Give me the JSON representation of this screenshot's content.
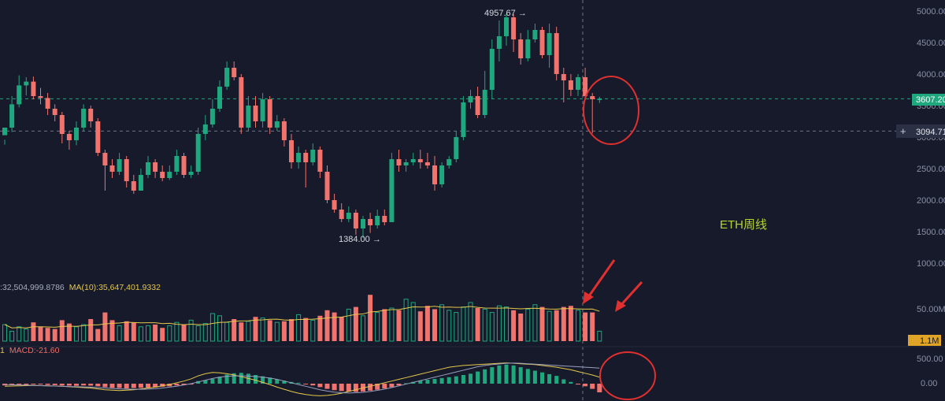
{
  "chart_data": {
    "type": "candlestick",
    "annotation": "ETH周线",
    "y_axis": {
      "ticks": [
        "5000.00",
        "4500.00",
        "4000.00",
        "3500.00",
        "3000.00",
        "2500.00",
        "2000.00",
        "1500.00",
        "1000.00"
      ],
      "ylim": [
        1000,
        5000
      ]
    },
    "price_labels": {
      "high": "4957.67",
      "low": "1384.00",
      "current": "3607.20",
      "crosshair": "3094.71"
    },
    "volume": {
      "legend_left": ":32,504,999.8786",
      "ma10_legend": "MA(10):35,647,401.9332",
      "tick": "50.00M",
      "current_badge": "1.1M"
    },
    "macd": {
      "legend_prefix": "1",
      "legend": "MACD:-21.60",
      "ticks": [
        "500.00",
        "0.00"
      ]
    },
    "candles": [
      [
        3030,
        3150,
        2960,
        2880
      ],
      [
        3150,
        3520,
        3650,
        3080
      ],
      [
        3520,
        3820,
        3980,
        3470
      ],
      [
        3820,
        3880,
        3950,
        3660
      ],
      [
        3880,
        3650,
        3960,
        3600
      ],
      [
        3650,
        3620,
        3780,
        3520
      ],
      [
        3620,
        3450,
        3700,
        3350
      ],
      [
        3450,
        3350,
        3520,
        3250
      ],
      [
        3350,
        3050,
        3400,
        2900
      ],
      [
        3050,
        2950,
        3100,
        2800
      ],
      [
        2950,
        3150,
        3250,
        2870
      ],
      [
        3150,
        3450,
        3520,
        3100
      ],
      [
        3450,
        3250,
        3500,
        3150
      ],
      [
        3250,
        2750,
        3300,
        2700
      ],
      [
        2750,
        2550,
        2800,
        2150
      ],
      [
        2550,
        2450,
        2650,
        2350
      ],
      [
        2450,
        2650,
        2750,
        2400
      ],
      [
        2650,
        2300,
        2700,
        2200
      ],
      [
        2300,
        2150,
        2400,
        2100
      ],
      [
        2150,
        2400,
        2500,
        2150
      ],
      [
        2400,
        2600,
        2700,
        2350
      ],
      [
        2600,
        2450,
        2650,
        2350
      ],
      [
        2450,
        2350,
        2550,
        2300
      ],
      [
        2350,
        2450,
        2550,
        2320
      ],
      [
        2450,
        2700,
        2800,
        2400
      ],
      [
        2700,
        2400,
        2750,
        2350
      ],
      [
        2400,
        2450,
        2550,
        2350
      ],
      [
        2450,
        3050,
        3150,
        2400
      ],
      [
        3050,
        3200,
        3350,
        2950
      ],
      [
        3200,
        3450,
        3600,
        3150
      ],
      [
        3450,
        3800,
        3900,
        3400
      ],
      [
        3800,
        4100,
        4200,
        3750
      ],
      [
        4100,
        3950,
        4200,
        3900
      ],
      [
        3950,
        3150,
        4000,
        3050
      ],
      [
        3150,
        3500,
        3650,
        3100
      ],
      [
        3500,
        3250,
        3650,
        3150
      ],
      [
        3250,
        3600,
        3700,
        3150
      ],
      [
        3600,
        3150,
        3650,
        3050
      ],
      [
        3150,
        3250,
        3350,
        3100
      ],
      [
        3250,
        2950,
        3300,
        2850
      ],
      [
        2950,
        2600,
        3050,
        2500
      ],
      [
        2600,
        2750,
        2850,
        2500
      ],
      [
        2750,
        2600,
        2800,
        2200
      ],
      [
        2600,
        2800,
        2900,
        2550
      ],
      [
        2800,
        2450,
        2850,
        2350
      ],
      [
        2450,
        2000,
        2550,
        1950
      ],
      [
        2000,
        1850,
        2100,
        1800
      ],
      [
        1850,
        1700,
        1950,
        1650
      ],
      [
        1700,
        1800,
        1900,
        1650
      ],
      [
        1800,
        1550,
        1850,
        1450
      ],
      [
        1550,
        1700,
        1750,
        1400
      ],
      [
        1700,
        1600,
        1800,
        1480
      ],
      [
        1600,
        1750,
        1850,
        1550
      ],
      [
        1750,
        1650,
        1850,
        1600
      ],
      [
        1650,
        2650,
        2750,
        1650
      ],
      [
        2650,
        2550,
        2800,
        2450
      ],
      [
        2550,
        2600,
        2650,
        2450
      ],
      [
        2600,
        2650,
        2750,
        2550
      ],
      [
        2650,
        2600,
        2800,
        2500
      ],
      [
        2600,
        2550,
        2750,
        2500
      ],
      [
        2550,
        2250,
        2700,
        2150
      ],
      [
        2250,
        2550,
        2600,
        2200
      ],
      [
        2550,
        2650,
        2700,
        2500
      ],
      [
        2650,
        3000,
        3100,
        2600
      ],
      [
        3000,
        3550,
        3650,
        2950
      ],
      [
        3550,
        3650,
        3750,
        3450
      ],
      [
        3650,
        3350,
        3800,
        3300
      ],
      [
        3350,
        3750,
        4050,
        3300
      ],
      [
        3750,
        4400,
        4550,
        3600
      ],
      [
        4400,
        4600,
        4850,
        4200
      ],
      [
        4600,
        4900,
        4957.67,
        4450
      ],
      [
        4900,
        4550,
        4950,
        4350
      ],
      [
        4550,
        4250,
        4650,
        4150
      ],
      [
        4250,
        4550,
        4700,
        4200
      ],
      [
        4550,
        4700,
        4800,
        4500
      ],
      [
        4700,
        4300,
        4750,
        4250
      ],
      [
        4300,
        4650,
        4800,
        4100
      ],
      [
        4650,
        4000,
        4750,
        3900
      ],
      [
        4000,
        3900,
        4100,
        3550
      ],
      [
        3900,
        3750,
        4000,
        3650
      ],
      [
        3750,
        3950,
        4000,
        3650
      ],
      [
        3950,
        3650,
        4100,
        3600
      ],
      [
        3650,
        3600,
        3700,
        3060
      ],
      [
        3600,
        3607.2,
        3640,
        3540
      ]
    ],
    "volumes": [
      30,
      18,
      26,
      22,
      34,
      26,
      24,
      22,
      38,
      32,
      26,
      30,
      40,
      22,
      52,
      38,
      28,
      36,
      34,
      26,
      28,
      30,
      24,
      28,
      34,
      30,
      38,
      28,
      32,
      50,
      46,
      34,
      40,
      34,
      36,
      44,
      42,
      38,
      34,
      36,
      40,
      48,
      42,
      38,
      46,
      56,
      52,
      44,
      58,
      62,
      46,
      84,
      52,
      58,
      60,
      56,
      76,
      70,
      54,
      64,
      58,
      66,
      56,
      52,
      62,
      70,
      60,
      58,
      52,
      64,
      62,
      56,
      50,
      58,
      66,
      62,
      54,
      56,
      62,
      64,
      56,
      52,
      52,
      18
    ],
    "macd_hist": [
      -40,
      -30,
      -20,
      -25,
      -15,
      -20,
      -30,
      -35,
      -40,
      -45,
      -50,
      -40,
      -45,
      -60,
      -80,
      -95,
      -100,
      -110,
      -100,
      -95,
      -90,
      -85,
      -70,
      -60,
      -40,
      -30,
      -20,
      60,
      80,
      110,
      160,
      210,
      240,
      250,
      230,
      200,
      170,
      140,
      100,
      70,
      40,
      20,
      -10,
      -40,
      -80,
      -120,
      -150,
      -170,
      -180,
      -190,
      -180,
      -160,
      -140,
      -110,
      -80,
      -40,
      10,
      40,
      70,
      90,
      110,
      130,
      150,
      170,
      200,
      230,
      280,
      330,
      380,
      420,
      440,
      420,
      380,
      340,
      300,
      260,
      220,
      180,
      100,
      40,
      -20,
      -60,
      -120,
      -200
    ],
    "macd_dif": [
      -60,
      -55,
      -50,
      -45,
      -40,
      -45,
      -50,
      -55,
      -60,
      -70,
      -80,
      -90,
      -100,
      -120,
      -140,
      -150,
      -160,
      -150,
      -140,
      -120,
      -100,
      -80,
      -50,
      -20,
      20,
      60,
      110,
      180,
      230,
      260,
      250,
      230,
      200,
      160,
      120,
      80,
      30,
      -20,
      -80,
      -130,
      -180,
      -220,
      -250,
      -270,
      -280,
      -270,
      -250,
      -220,
      -180,
      -140,
      -100,
      -60,
      -20,
      20,
      60,
      100,
      140,
      180,
      220,
      260,
      300,
      340,
      380,
      400,
      420,
      430,
      440,
      450,
      460,
      470,
      480,
      470,
      460,
      450,
      440,
      420,
      400,
      380,
      350,
      320,
      280,
      240,
      200,
      150
    ],
    "macd_dea": [
      -20,
      -25,
      -30,
      -35,
      -40,
      -45,
      -50,
      -55,
      -60,
      -65,
      -70,
      -75,
      -80,
      -90,
      -100,
      -110,
      -120,
      -125,
      -130,
      -130,
      -125,
      -115,
      -100,
      -80,
      -60,
      -30,
      0,
      40,
      80,
      120,
      150,
      170,
      180,
      180,
      175,
      165,
      150,
      130,
      100,
      60,
      20,
      -20,
      -60,
      -100,
      -140,
      -170,
      -195,
      -210,
      -215,
      -210,
      -200,
      -180,
      -155,
      -125,
      -90,
      -50,
      -10,
      30,
      70,
      110,
      150,
      190,
      230,
      270,
      310,
      350,
      390,
      420,
      440,
      455,
      470,
      475,
      470,
      460,
      450,
      440,
      430,
      420,
      410,
      400,
      390,
      380,
      370,
      360
    ]
  }
}
